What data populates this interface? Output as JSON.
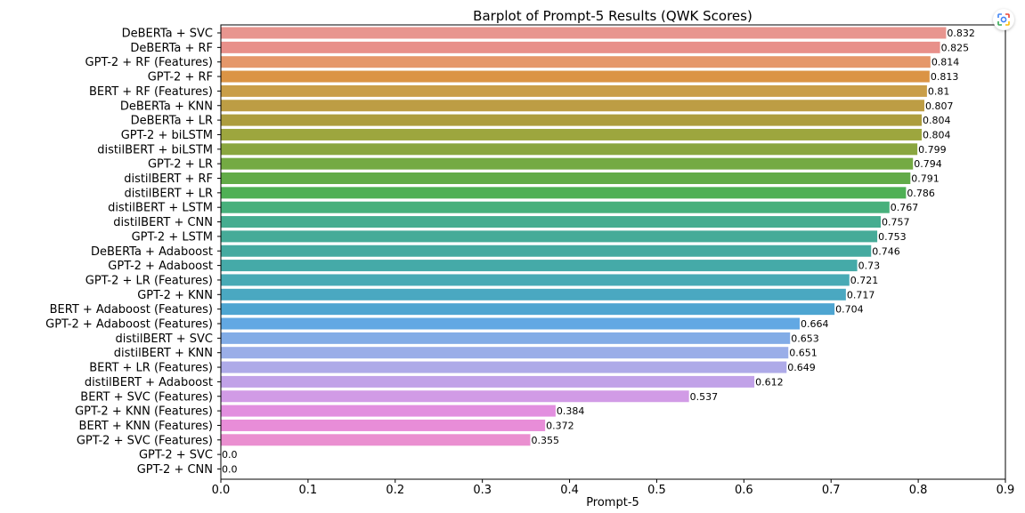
{
  "chart_data": {
    "type": "bar",
    "orientation": "horizontal",
    "title": "Barplot of Prompt-5 Results (QWK Scores)",
    "xlabel": "Prompt-5",
    "ylabel": "",
    "xlim": [
      0.0,
      0.9
    ],
    "xticks": [
      0.0,
      0.1,
      0.2,
      0.3,
      0.4,
      0.5,
      0.6,
      0.7,
      0.8,
      0.9
    ],
    "xtick_labels": [
      "0.0",
      "0.1",
      "0.2",
      "0.3",
      "0.4",
      "0.5",
      "0.6",
      "0.7",
      "0.8",
      "0.9"
    ],
    "grid": false,
    "categories": [
      "DeBERTa + SVC",
      "DeBERTa + RF",
      "GPT-2 + RF (Features)",
      "GPT-2 + RF",
      "BERT + RF (Features)",
      "DeBERTa + KNN",
      "DeBERTa + LR",
      "GPT-2 + biLSTM",
      "distilBERT + biLSTM",
      "GPT-2 + LR",
      "distilBERT + RF",
      "distilBERT + LR",
      "distilBERT + LSTM",
      "distilBERT + CNN",
      "GPT-2 + LSTM",
      "DeBERTa + Adaboost",
      "GPT-2 + Adaboost",
      "GPT-2 + LR (Features)",
      "GPT-2 + KNN",
      "BERT + Adaboost (Features)",
      "GPT-2 + Adaboost (Features)",
      "distilBERT + SVC",
      "distilBERT + KNN",
      "BERT + LR (Features)",
      "distilBERT + Adaboost",
      "BERT + SVC (Features)",
      "GPT-2 + KNN (Features)",
      "BERT + KNN (Features)",
      "GPT-2 + SVC (Features)",
      "GPT-2 + SVC",
      "GPT-2 + CNN"
    ],
    "values": [
      0.832,
      0.825,
      0.814,
      0.813,
      0.81,
      0.807,
      0.804,
      0.804,
      0.799,
      0.794,
      0.791,
      0.786,
      0.767,
      0.757,
      0.753,
      0.746,
      0.73,
      0.721,
      0.717,
      0.704,
      0.664,
      0.653,
      0.651,
      0.649,
      0.612,
      0.537,
      0.384,
      0.372,
      0.355,
      0.0,
      0.0
    ],
    "value_labels": [
      "0.832",
      "0.825",
      "0.814",
      "0.813",
      "0.81",
      "0.807",
      "0.804",
      "0.804",
      "0.799",
      "0.794",
      "0.791",
      "0.786",
      "0.767",
      "0.757",
      "0.753",
      "0.746",
      "0.73",
      "0.721",
      "0.717",
      "0.704",
      "0.664",
      "0.653",
      "0.651",
      "0.649",
      "0.612",
      "0.537",
      "0.384",
      "0.372",
      "0.355",
      "0.0",
      "0.0"
    ],
    "colors": [
      "#e8958f",
      "#e8908a",
      "#e5976a",
      "#db9445",
      "#c99e49",
      "#bd9d44",
      "#ad9d3e",
      "#9da63e",
      "#8aa63f",
      "#74aa43",
      "#62ab48",
      "#4fb055",
      "#48b07c",
      "#46ad90",
      "#46ab98",
      "#45aaa0",
      "#45aaa8",
      "#48aab5",
      "#4aa8c1",
      "#4ea5d1",
      "#62a8e3",
      "#82ace6",
      "#9aaee8",
      "#aeaae8",
      "#c1a2e8",
      "#d19be6",
      "#e28fdf",
      "#e88dd8",
      "#ea8fd0",
      "#ef90cc",
      "#ef90c8"
    ]
  },
  "ui": {
    "lens_icon": "google-lens-icon"
  }
}
